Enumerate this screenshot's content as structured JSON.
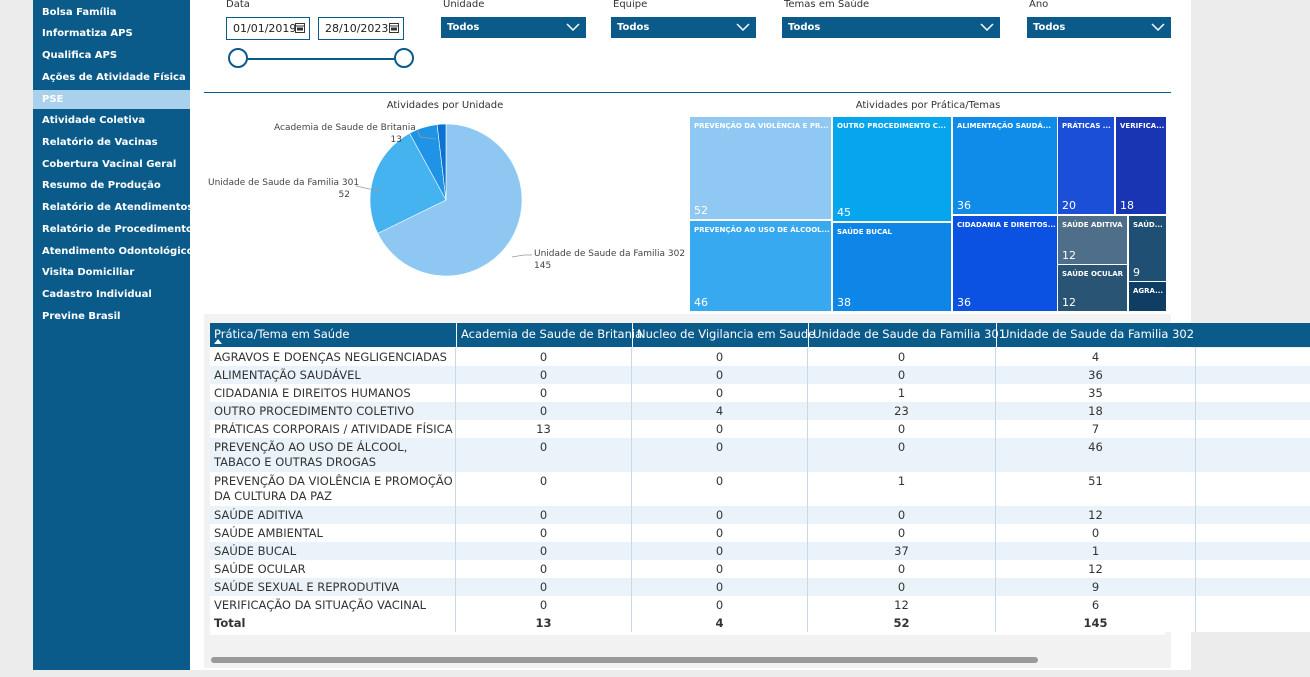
{
  "sidebar": {
    "items": [
      {
        "label": "Bolsa Família",
        "active": false
      },
      {
        "label": "Informatiza APS",
        "active": false
      },
      {
        "label": "Qualifica APS",
        "active": false
      },
      {
        "label": "Ações de Atividade Física",
        "active": false
      },
      {
        "label": "PSE",
        "active": true
      },
      {
        "label": "Atividade Coletiva",
        "active": false
      },
      {
        "label": "Relatório de Vacinas",
        "active": false
      },
      {
        "label": "Cobertura Vacinal Geral",
        "active": false
      },
      {
        "label": "Resumo de Produção",
        "active": false
      },
      {
        "label": "Relatório de Atendimentos",
        "active": false
      },
      {
        "label": "Relatório de Procedimentos",
        "active": false
      },
      {
        "label": "Atendimento Odontológico",
        "active": false
      },
      {
        "label": "Visita Domiciliar",
        "active": false
      },
      {
        "label": "Cadastro Individual",
        "active": false
      },
      {
        "label": "Previne Brasil",
        "active": false
      }
    ]
  },
  "filters": {
    "data_label": "Data",
    "date_start": "01/01/2019",
    "date_end": "28/10/2023",
    "unidade_label": "Unidade",
    "unidade_value": "Todos",
    "equipe_label": "Equipe",
    "equipe_value": "Todos",
    "temas_label": "Temas em Saúde",
    "temas_value": "Todos",
    "ano_label": "Ano",
    "ano_value": "Todos"
  },
  "pie": {
    "title": "Atividades por Unidade",
    "labels": [
      {
        "name": "Academia de Saude de Britania",
        "value": "13"
      },
      {
        "name": "Unidade de Saude da Familia 301",
        "value": "52"
      },
      {
        "name": "Unidade de Saude da Familia 302",
        "value": "145"
      }
    ]
  },
  "chart_data": {
    "type": "pie",
    "title": "Atividades por Unidade",
    "slices": [
      {
        "name": "Unidade de Saude da Familia 302",
        "value": 145,
        "color": "#8ec8f2"
      },
      {
        "name": "Unidade de Saude da Familia 301",
        "value": 52,
        "color": "#45b3ef"
      },
      {
        "name": "Academia de Saude de Britania",
        "value": 13,
        "color": "#1f93e6"
      },
      {
        "name": "Nucleo de Vigilancia em Saude",
        "value": 4,
        "color": "#0a73d1"
      }
    ]
  },
  "treemap": {
    "title": "Atividades por Prática/Temas",
    "tiles": [
      {
        "label": "PREVENÇÃO DA VIOLÊNCIA E PR...",
        "value": "52",
        "color": "#90c8f4"
      },
      {
        "label": "OUTRO PROCEDIMENTO C...",
        "value": "45",
        "color": "#06a6ee"
      },
      {
        "label": "ALIMENTAÇÃO SAUDÁ...",
        "value": "36",
        "color": "#0f8ce9"
      },
      {
        "label": "PRÁTICAS ...",
        "value": "20",
        "color": "#1b4fd8"
      },
      {
        "label": "VERIFICA...",
        "value": "18",
        "color": "#1a35b4"
      },
      {
        "label": "PREVENÇÃO AO USO DE ÁLCOOL...",
        "value": "46",
        "color": "#36a9f0"
      },
      {
        "label": "SAÚDE BUCAL",
        "value": "38",
        "color": "#0d86e8"
      },
      {
        "label": "CIDADANIA E DIREITOS...",
        "value": "36",
        "color": "#0c52e2"
      },
      {
        "label": "SAÚDE ADITIVA",
        "value": "12",
        "color": "#4e6e89"
      },
      {
        "label": "SAÚD...",
        "value": "9",
        "color": "#1f4f73"
      },
      {
        "label": "SAÚDE OCULAR",
        "value": "12",
        "color": "#2a5474"
      },
      {
        "label": "AGRA...",
        "value": "",
        "color": "#0f3d63"
      }
    ]
  },
  "table": {
    "columns": [
      "Prática/Tema em Saúde",
      "Academia de Saude de Britania",
      "Nucleo de Vigilancia em Saude",
      "Unidade de Saude da Familia 301",
      "Unidade de Saude da Familia 302"
    ],
    "rows": [
      {
        "label": "AGRAVOS E DOENÇAS NEGLIGENCIADAS",
        "v": [
          "0",
          "0",
          "0",
          "4"
        ]
      },
      {
        "label": "ALIMENTAÇÃO SAUDÁVEL",
        "v": [
          "0",
          "0",
          "0",
          "36"
        ]
      },
      {
        "label": "CIDADANIA E DIREITOS HUMANOS",
        "v": [
          "0",
          "0",
          "1",
          "35"
        ]
      },
      {
        "label": "OUTRO PROCEDIMENTO COLETIVO",
        "v": [
          "0",
          "4",
          "23",
          "18"
        ]
      },
      {
        "label": "PRÁTICAS CORPORAIS / ATIVIDADE FÍSICA",
        "v": [
          "13",
          "0",
          "0",
          "7"
        ]
      },
      {
        "label": "PREVENÇÃO AO USO DE ÁLCOOL, TABACO E OUTRAS DROGAS",
        "v": [
          "0",
          "0",
          "0",
          "46"
        ]
      },
      {
        "label": "PREVENÇÃO DA VIOLÊNCIA E PROMOÇÃO DA CULTURA DA PAZ",
        "v": [
          "0",
          "0",
          "1",
          "51"
        ]
      },
      {
        "label": "SAÚDE ADITIVA",
        "v": [
          "0",
          "0",
          "0",
          "12"
        ]
      },
      {
        "label": "SAÚDE AMBIENTAL",
        "v": [
          "0",
          "0",
          "0",
          "0"
        ]
      },
      {
        "label": "SAÚDE BUCAL",
        "v": [
          "0",
          "0",
          "37",
          "1"
        ]
      },
      {
        "label": "SAÚDE OCULAR",
        "v": [
          "0",
          "0",
          "0",
          "12"
        ]
      },
      {
        "label": "SAÚDE SEXUAL E REPRODUTIVA",
        "v": [
          "0",
          "0",
          "0",
          "9"
        ]
      },
      {
        "label": "VERIFICAÇÃO DA SITUAÇÃO VACINAL",
        "v": [
          "0",
          "0",
          "12",
          "6"
        ]
      }
    ],
    "total": {
      "label": "Total",
      "v": [
        "13",
        "4",
        "52",
        "145"
      ]
    }
  }
}
